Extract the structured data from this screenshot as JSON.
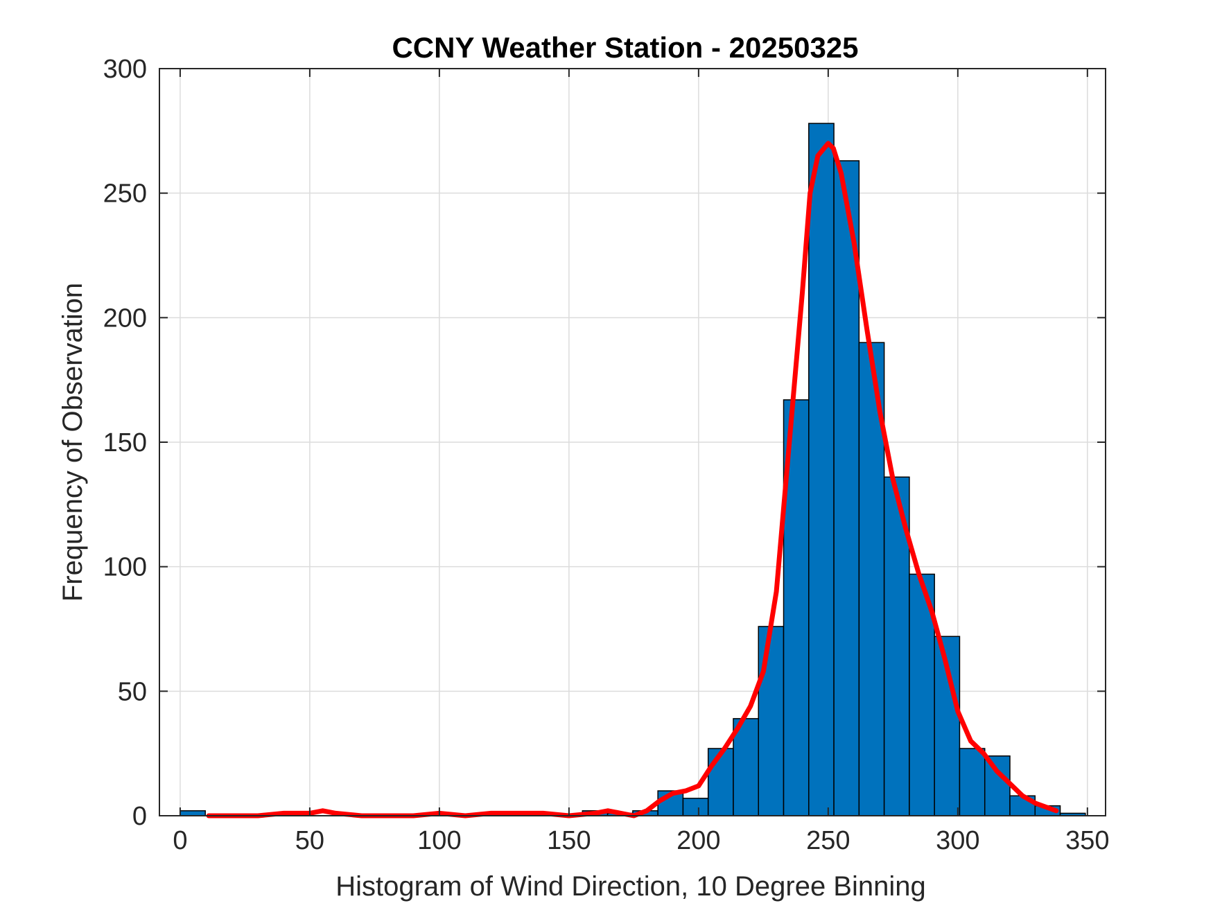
{
  "chart_data": {
    "type": "bar",
    "title": "CCNY Weather Station - 20250325",
    "xlabel": "Histogram of Wind Direction, 10 Degree Binning",
    "ylabel": "Frequency of Observation",
    "xlim": [
      -8,
      357
    ],
    "ylim": [
      0,
      300
    ],
    "xticks": [
      0,
      50,
      100,
      150,
      200,
      250,
      300,
      350
    ],
    "yticks": [
      0,
      50,
      100,
      150,
      200,
      250,
      300
    ],
    "grid": true,
    "bin_width": 9.7,
    "bins": [
      {
        "x_start": 0,
        "value": 2
      },
      {
        "x_start": 9.7,
        "value": 0
      },
      {
        "x_start": 19.4,
        "value": 0
      },
      {
        "x_start": 29.1,
        "value": 0
      },
      {
        "x_start": 38.8,
        "value": 0
      },
      {
        "x_start": 48.5,
        "value": 0
      },
      {
        "x_start": 58.2,
        "value": 0
      },
      {
        "x_start": 67.9,
        "value": 0
      },
      {
        "x_start": 77.6,
        "value": 0
      },
      {
        "x_start": 87.3,
        "value": 0
      },
      {
        "x_start": 97.0,
        "value": 0
      },
      {
        "x_start": 106.7,
        "value": 0
      },
      {
        "x_start": 116.4,
        "value": 0
      },
      {
        "x_start": 126.1,
        "value": 0
      },
      {
        "x_start": 135.8,
        "value": 0
      },
      {
        "x_start": 145.5,
        "value": 0
      },
      {
        "x_start": 155.2,
        "value": 2
      },
      {
        "x_start": 164.9,
        "value": 1
      },
      {
        "x_start": 174.6,
        "value": 2
      },
      {
        "x_start": 184.3,
        "value": 10
      },
      {
        "x_start": 194.0,
        "value": 7
      },
      {
        "x_start": 203.7,
        "value": 27
      },
      {
        "x_start": 213.4,
        "value": 39
      },
      {
        "x_start": 223.1,
        "value": 76
      },
      {
        "x_start": 232.8,
        "value": 167
      },
      {
        "x_start": 242.5,
        "value": 278
      },
      {
        "x_start": 252.2,
        "value": 263
      },
      {
        "x_start": 261.9,
        "value": 190
      },
      {
        "x_start": 271.6,
        "value": 136
      },
      {
        "x_start": 281.3,
        "value": 97
      },
      {
        "x_start": 291.0,
        "value": 72
      },
      {
        "x_start": 300.7,
        "value": 27
      },
      {
        "x_start": 310.4,
        "value": 24
      },
      {
        "x_start": 320.1,
        "value": 8
      },
      {
        "x_start": 329.8,
        "value": 4
      },
      {
        "x_start": 339.5,
        "value": 1
      }
    ],
    "curve": {
      "color": "#ff0000",
      "x": [
        11,
        20,
        30,
        40,
        50,
        55,
        60,
        70,
        80,
        90,
        100,
        110,
        120,
        130,
        140,
        150,
        160,
        165,
        170,
        175,
        180,
        185,
        190,
        195,
        200,
        205,
        210,
        215,
        220,
        225,
        230,
        235,
        240,
        243,
        246,
        250,
        252,
        255,
        260,
        265,
        270,
        275,
        280,
        285,
        290,
        295,
        300,
        305,
        310,
        315,
        320,
        325,
        330,
        338
      ],
      "y": [
        0,
        0,
        0,
        1,
        1,
        2,
        1,
        0,
        0,
        0,
        1,
        0,
        1,
        1,
        1,
        0,
        1,
        2,
        1,
        0,
        2,
        6,
        9,
        10,
        12,
        20,
        27,
        35,
        44,
        58,
        90,
        150,
        210,
        250,
        265,
        270,
        268,
        258,
        230,
        195,
        162,
        135,
        115,
        97,
        82,
        63,
        42,
        30,
        25,
        18,
        13,
        8,
        5,
        2
      ]
    },
    "colors": {
      "bar_fill": "#0072bd",
      "bar_edge": "#000000",
      "grid": "#dcdcdc",
      "axis": "#262626"
    }
  }
}
